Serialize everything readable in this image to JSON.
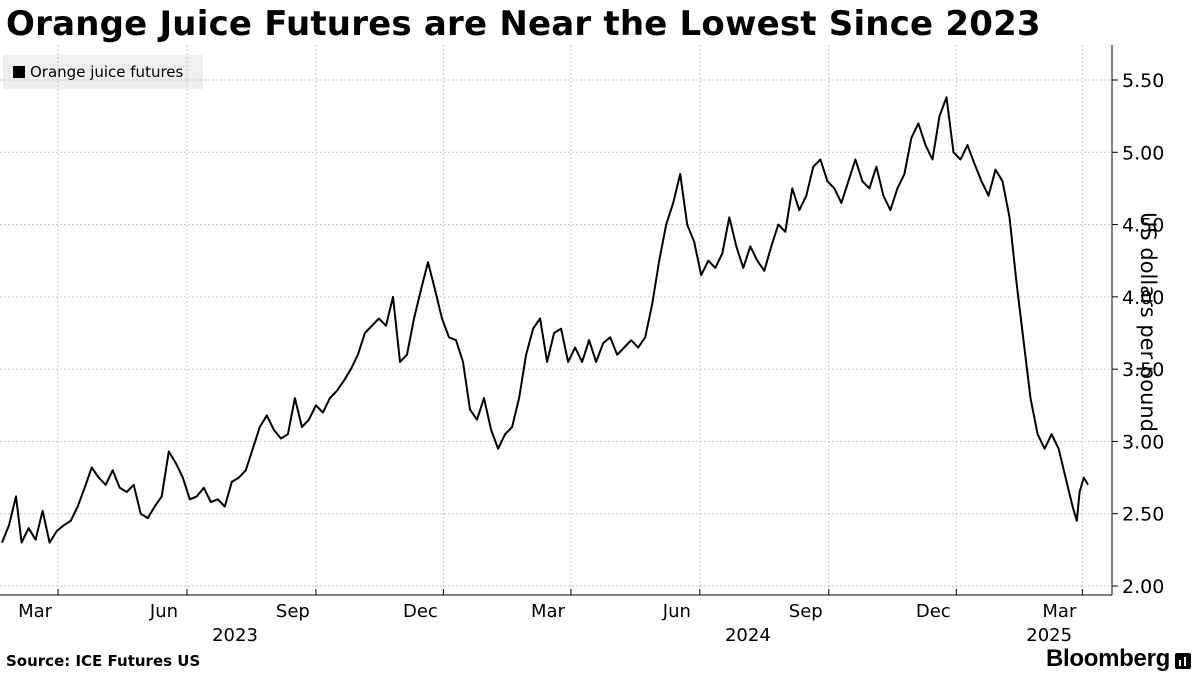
{
  "chart_data": {
    "type": "line",
    "title": "Orange Juice Futures are Near the Lowest Since 2023",
    "ylabel": "US dollars per pound",
    "ylim": [
      2.0,
      5.5
    ],
    "y_ticks": [
      "5.50",
      "5.00",
      "4.50",
      "4.00",
      "3.50",
      "3.00",
      "2.50",
      "2.00"
    ],
    "y_axis_side": "right",
    "grid": true,
    "legend": "top-left",
    "x_tick_labels": [
      {
        "label": "Mar",
        "date": "2023-03-01"
      },
      {
        "label": "Jun",
        "date": "2023-06-01"
      },
      {
        "label": "Sep",
        "date": "2023-09-01"
      },
      {
        "label": "Dec",
        "date": "2023-12-01"
      },
      {
        "label": "Mar",
        "date": "2024-03-01"
      },
      {
        "label": "Jun",
        "date": "2024-06-01"
      },
      {
        "label": "Sep",
        "date": "2024-09-01"
      },
      {
        "label": "Dec",
        "date": "2024-12-01"
      },
      {
        "label": "Mar",
        "date": "2025-03-01"
      }
    ],
    "year_labels": [
      {
        "label": "2023",
        "date": "2023-07-01"
      },
      {
        "label": "2024",
        "date": "2024-07-01"
      },
      {
        "label": "2025",
        "date": "2025-02-01"
      }
    ],
    "series": [
      {
        "name": "Orange juice futures",
        "color": "#000000",
        "points": [
          [
            "2023-01-20",
            2.3
          ],
          [
            "2023-01-25",
            2.42
          ],
          [
            "2023-01-30",
            2.62
          ],
          [
            "2023-02-03",
            2.3
          ],
          [
            "2023-02-08",
            2.4
          ],
          [
            "2023-02-13",
            2.32
          ],
          [
            "2023-02-18",
            2.52
          ],
          [
            "2023-02-23",
            2.3
          ],
          [
            "2023-02-28",
            2.38
          ],
          [
            "2023-03-05",
            2.42
          ],
          [
            "2023-03-10",
            2.45
          ],
          [
            "2023-03-15",
            2.55
          ],
          [
            "2023-03-20",
            2.68
          ],
          [
            "2023-03-25",
            2.82
          ],
          [
            "2023-03-30",
            2.75
          ],
          [
            "2023-04-04",
            2.7
          ],
          [
            "2023-04-09",
            2.8
          ],
          [
            "2023-04-14",
            2.68
          ],
          [
            "2023-04-19",
            2.65
          ],
          [
            "2023-04-24",
            2.7
          ],
          [
            "2023-04-29",
            2.5
          ],
          [
            "2023-05-04",
            2.47
          ],
          [
            "2023-05-09",
            2.55
          ],
          [
            "2023-05-14",
            2.62
          ],
          [
            "2023-05-19",
            2.93
          ],
          [
            "2023-05-24",
            2.85
          ],
          [
            "2023-05-29",
            2.75
          ],
          [
            "2023-06-03",
            2.6
          ],
          [
            "2023-06-08",
            2.62
          ],
          [
            "2023-06-13",
            2.68
          ],
          [
            "2023-06-18",
            2.58
          ],
          [
            "2023-06-23",
            2.6
          ],
          [
            "2023-06-28",
            2.55
          ],
          [
            "2023-07-03",
            2.72
          ],
          [
            "2023-07-08",
            2.75
          ],
          [
            "2023-07-13",
            2.8
          ],
          [
            "2023-07-18",
            2.95
          ],
          [
            "2023-07-23",
            3.1
          ],
          [
            "2023-07-28",
            3.18
          ],
          [
            "2023-08-02",
            3.08
          ],
          [
            "2023-08-07",
            3.02
          ],
          [
            "2023-08-12",
            3.05
          ],
          [
            "2023-08-17",
            3.3
          ],
          [
            "2023-08-22",
            3.1
          ],
          [
            "2023-08-27",
            3.15
          ],
          [
            "2023-09-01",
            3.25
          ],
          [
            "2023-09-06",
            3.2
          ],
          [
            "2023-09-11",
            3.3
          ],
          [
            "2023-09-16",
            3.35
          ],
          [
            "2023-09-21",
            3.42
          ],
          [
            "2023-09-26",
            3.5
          ],
          [
            "2023-10-01",
            3.6
          ],
          [
            "2023-10-06",
            3.75
          ],
          [
            "2023-10-11",
            3.8
          ],
          [
            "2023-10-16",
            3.85
          ],
          [
            "2023-10-21",
            3.8
          ],
          [
            "2023-10-26",
            4.0
          ],
          [
            "2023-10-31",
            3.55
          ],
          [
            "2023-11-05",
            3.6
          ],
          [
            "2023-11-10",
            3.85
          ],
          [
            "2023-11-15",
            4.05
          ],
          [
            "2023-11-20",
            4.24
          ],
          [
            "2023-11-25",
            4.05
          ],
          [
            "2023-11-30",
            3.85
          ],
          [
            "2023-12-05",
            3.72
          ],
          [
            "2023-12-10",
            3.7
          ],
          [
            "2023-12-15",
            3.55
          ],
          [
            "2023-12-20",
            3.22
          ],
          [
            "2023-12-25",
            3.15
          ],
          [
            "2023-12-30",
            3.3
          ],
          [
            "2024-01-04",
            3.08
          ],
          [
            "2024-01-09",
            2.95
          ],
          [
            "2024-01-14",
            3.05
          ],
          [
            "2024-01-19",
            3.1
          ],
          [
            "2024-01-24",
            3.3
          ],
          [
            "2024-01-29",
            3.6
          ],
          [
            "2024-02-03",
            3.78
          ],
          [
            "2024-02-08",
            3.85
          ],
          [
            "2024-02-13",
            3.55
          ],
          [
            "2024-02-18",
            3.75
          ],
          [
            "2024-02-23",
            3.78
          ],
          [
            "2024-02-28",
            3.55
          ],
          [
            "2024-03-04",
            3.65
          ],
          [
            "2024-03-09",
            3.55
          ],
          [
            "2024-03-14",
            3.7
          ],
          [
            "2024-03-19",
            3.55
          ],
          [
            "2024-03-24",
            3.68
          ],
          [
            "2024-03-29",
            3.72
          ],
          [
            "2024-04-03",
            3.6
          ],
          [
            "2024-04-08",
            3.65
          ],
          [
            "2024-04-13",
            3.7
          ],
          [
            "2024-04-18",
            3.65
          ],
          [
            "2024-04-23",
            3.72
          ],
          [
            "2024-04-28",
            3.95
          ],
          [
            "2024-05-03",
            4.25
          ],
          [
            "2024-05-08",
            4.5
          ],
          [
            "2024-05-13",
            4.65
          ],
          [
            "2024-05-18",
            4.85
          ],
          [
            "2024-05-23",
            4.5
          ],
          [
            "2024-05-28",
            4.38
          ],
          [
            "2024-06-02",
            4.15
          ],
          [
            "2024-06-07",
            4.25
          ],
          [
            "2024-06-12",
            4.2
          ],
          [
            "2024-06-17",
            4.3
          ],
          [
            "2024-06-22",
            4.55
          ],
          [
            "2024-06-27",
            4.35
          ],
          [
            "2024-07-02",
            4.2
          ],
          [
            "2024-07-07",
            4.35
          ],
          [
            "2024-07-12",
            4.25
          ],
          [
            "2024-07-17",
            4.18
          ],
          [
            "2024-07-22",
            4.35
          ],
          [
            "2024-07-27",
            4.5
          ],
          [
            "2024-08-01",
            4.45
          ],
          [
            "2024-08-06",
            4.75
          ],
          [
            "2024-08-11",
            4.6
          ],
          [
            "2024-08-16",
            4.7
          ],
          [
            "2024-08-21",
            4.9
          ],
          [
            "2024-08-26",
            4.95
          ],
          [
            "2024-08-31",
            4.8
          ],
          [
            "2024-09-05",
            4.75
          ],
          [
            "2024-09-10",
            4.65
          ],
          [
            "2024-09-15",
            4.8
          ],
          [
            "2024-09-20",
            4.95
          ],
          [
            "2024-09-25",
            4.8
          ],
          [
            "2024-09-30",
            4.75
          ],
          [
            "2024-10-05",
            4.9
          ],
          [
            "2024-10-10",
            4.7
          ],
          [
            "2024-10-15",
            4.6
          ],
          [
            "2024-10-20",
            4.75
          ],
          [
            "2024-10-25",
            4.85
          ],
          [
            "2024-10-30",
            5.1
          ],
          [
            "2024-11-04",
            5.2
          ],
          [
            "2024-11-09",
            5.05
          ],
          [
            "2024-11-14",
            4.95
          ],
          [
            "2024-11-19",
            5.25
          ],
          [
            "2024-11-24",
            5.38
          ],
          [
            "2024-11-29",
            5.0
          ],
          [
            "2024-12-04",
            4.95
          ],
          [
            "2024-12-09",
            5.05
          ],
          [
            "2024-12-14",
            4.92
          ],
          [
            "2024-12-19",
            4.8
          ],
          [
            "2024-12-24",
            4.7
          ],
          [
            "2024-12-29",
            4.88
          ],
          [
            "2025-01-03",
            4.8
          ],
          [
            "2025-01-08",
            4.55
          ],
          [
            "2025-01-13",
            4.1
          ],
          [
            "2025-01-18",
            3.7
          ],
          [
            "2025-01-23",
            3.3
          ],
          [
            "2025-01-28",
            3.05
          ],
          [
            "2025-02-02",
            2.95
          ],
          [
            "2025-02-07",
            3.05
          ],
          [
            "2025-02-12",
            2.95
          ],
          [
            "2025-02-17",
            2.75
          ],
          [
            "2025-02-22",
            2.55
          ],
          [
            "2025-02-25",
            2.45
          ],
          [
            "2025-02-27",
            2.65
          ],
          [
            "2025-03-02",
            2.75
          ],
          [
            "2025-03-05",
            2.7
          ]
        ]
      }
    ]
  },
  "legend_label": "Orange juice futures",
  "source": "Source: ICE Futures US",
  "brand": "Bloomberg"
}
